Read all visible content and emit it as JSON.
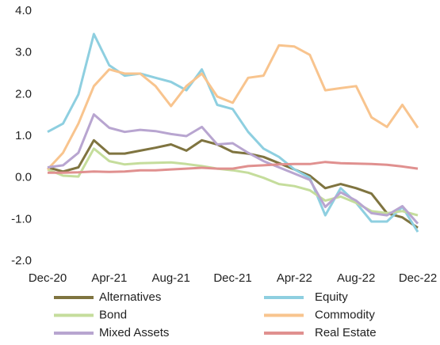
{
  "chart_data": {
    "type": "line",
    "categories": [
      "Dec-20",
      null,
      null,
      null,
      "Apr-21",
      null,
      null,
      null,
      "Aug-21",
      null,
      null,
      null,
      "Dec-21",
      null,
      null,
      null,
      "Apr-22",
      null,
      null,
      null,
      "Aug-22",
      null,
      null,
      null,
      "Dec-22"
    ],
    "series": [
      {
        "name": "Alternatives",
        "color": "#7f7440",
        "values": [
          0.25,
          0.15,
          0.25,
          0.9,
          0.58,
          0.58,
          0.65,
          0.72,
          0.8,
          0.65,
          0.9,
          0.8,
          0.62,
          0.58,
          0.5,
          0.35,
          0.2,
          0.05,
          -0.25,
          -0.15,
          -0.25,
          -0.38,
          -0.85,
          -0.95,
          -1.2
        ]
      },
      {
        "name": "Equity",
        "color": "#8ecfe0",
        "values": [
          1.1,
          1.3,
          2.0,
          3.45,
          2.7,
          2.45,
          2.5,
          2.4,
          2.3,
          2.1,
          2.6,
          1.75,
          1.65,
          1.1,
          0.7,
          0.5,
          0.2,
          0.0,
          -0.9,
          -0.25,
          -0.6,
          -1.05,
          -1.05,
          -0.7,
          -1.3
        ]
      },
      {
        "name": "Bond",
        "color": "#c5dd9c",
        "values": [
          0.2,
          0.05,
          0.03,
          0.7,
          0.4,
          0.32,
          0.35,
          0.36,
          0.37,
          0.33,
          0.28,
          0.22,
          0.18,
          0.12,
          0.0,
          -0.15,
          -0.2,
          -0.3,
          -0.55,
          -0.45,
          -0.6,
          -0.8,
          -0.85,
          -0.8,
          -0.9
        ]
      },
      {
        "name": "Commodity",
        "color": "#f8c48e",
        "values": [
          0.2,
          0.6,
          1.3,
          2.2,
          2.6,
          2.5,
          2.5,
          2.2,
          1.72,
          2.2,
          2.5,
          1.95,
          1.8,
          2.4,
          2.45,
          3.18,
          3.15,
          2.95,
          2.1,
          2.15,
          2.2,
          1.45,
          1.22,
          1.75,
          1.2
        ]
      },
      {
        "name": "Mixed Assets",
        "color": "#b8a5d0",
        "values": [
          0.25,
          0.3,
          0.6,
          1.52,
          1.2,
          1.1,
          1.15,
          1.12,
          1.05,
          1.0,
          1.22,
          0.8,
          0.83,
          0.6,
          0.4,
          0.25,
          0.1,
          -0.05,
          -0.7,
          -0.35,
          -0.55,
          -0.85,
          -0.9,
          -0.68,
          -1.1
        ]
      },
      {
        "name": "Real Estate",
        "color": "#e0908f",
        "values": [
          0.12,
          0.12,
          0.13,
          0.15,
          0.14,
          0.15,
          0.18,
          0.18,
          0.2,
          0.22,
          0.24,
          0.22,
          0.22,
          0.28,
          0.3,
          0.32,
          0.33,
          0.33,
          0.38,
          0.35,
          0.34,
          0.33,
          0.31,
          0.27,
          0.22
        ]
      }
    ],
    "ylim": [
      -2,
      4
    ],
    "yticks": [
      {
        "value": -2,
        "label": "-2.0"
      },
      {
        "value": -1,
        "label": "-1.0"
      },
      {
        "value": 0,
        "label": "0.0"
      },
      {
        "value": 1,
        "label": "1.0"
      },
      {
        "value": 2,
        "label": "2.0"
      },
      {
        "value": 3,
        "label": "3.0"
      },
      {
        "value": 4,
        "label": "4.0"
      }
    ],
    "grid": false,
    "legend": "bottom"
  }
}
